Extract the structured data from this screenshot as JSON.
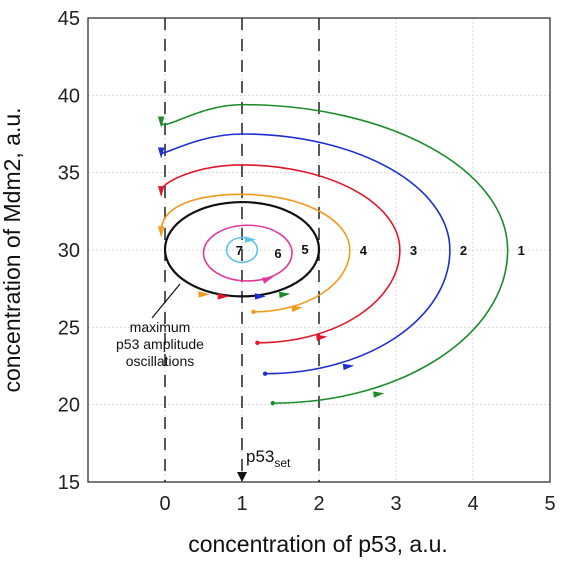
{
  "chart_data": {
    "type": "line",
    "xlabel": "concentration of p53, a.u.",
    "ylabel": "concentration of Mdm2, a.u.",
    "xlim": [
      -1,
      5
    ],
    "ylim": [
      15,
      45
    ],
    "xticks": [
      "0",
      "1",
      "2",
      "3",
      "4",
      "5"
    ],
    "yticks": [
      "15",
      "20",
      "25",
      "30",
      "35",
      "40",
      "45"
    ],
    "grid": true,
    "center": [
      1,
      30
    ],
    "dashed_verticals": [
      0,
      1,
      2
    ],
    "p53set": {
      "base": "p53",
      "sub": "set",
      "x": 1
    },
    "annotation": [
      "maximum",
      "p53 amplitude",
      "oscillations"
    ],
    "series": [
      {
        "label": "1",
        "color": "#1a8c2a",
        "start": [
          1.4,
          20.1
        ],
        "x_right": 4.45,
        "top": 39.4,
        "left_x": -0.05,
        "end_y": 38.3
      },
      {
        "label": "2",
        "color": "#1c2fd0",
        "start": [
          1.3,
          22.0
        ],
        "x_right": 3.7,
        "top": 37.5,
        "left_x": -0.05,
        "end_y": 36.3
      },
      {
        "label": "3",
        "color": "#e0182a",
        "start": [
          1.2,
          24.0
        ],
        "x_right": 3.05,
        "top": 35.5,
        "left_x": -0.05,
        "end_y": 33.8
      },
      {
        "label": "4",
        "color": "#f39a1a",
        "start": [
          1.15,
          26.0
        ],
        "x_right": 2.4,
        "top": 33.6,
        "left_x": -0.05,
        "end_y": 31.2
      },
      {
        "label": "5",
        "color": "#111111",
        "x_right": 2.0,
        "top": 33.1,
        "left_x": 0.0,
        "bottom": 27.0,
        "closed": true
      },
      {
        "label": "6",
        "color": "#e0399c",
        "x_right": 1.65,
        "top": 31.6,
        "left_x": 0.5,
        "bottom": 28.0,
        "closed": true
      },
      {
        "label": "7",
        "color": "#5fc3e8",
        "x_right": 1.2,
        "top": 30.8,
        "left_x": 0.8,
        "bottom": 29.2,
        "closed": true
      }
    ]
  }
}
